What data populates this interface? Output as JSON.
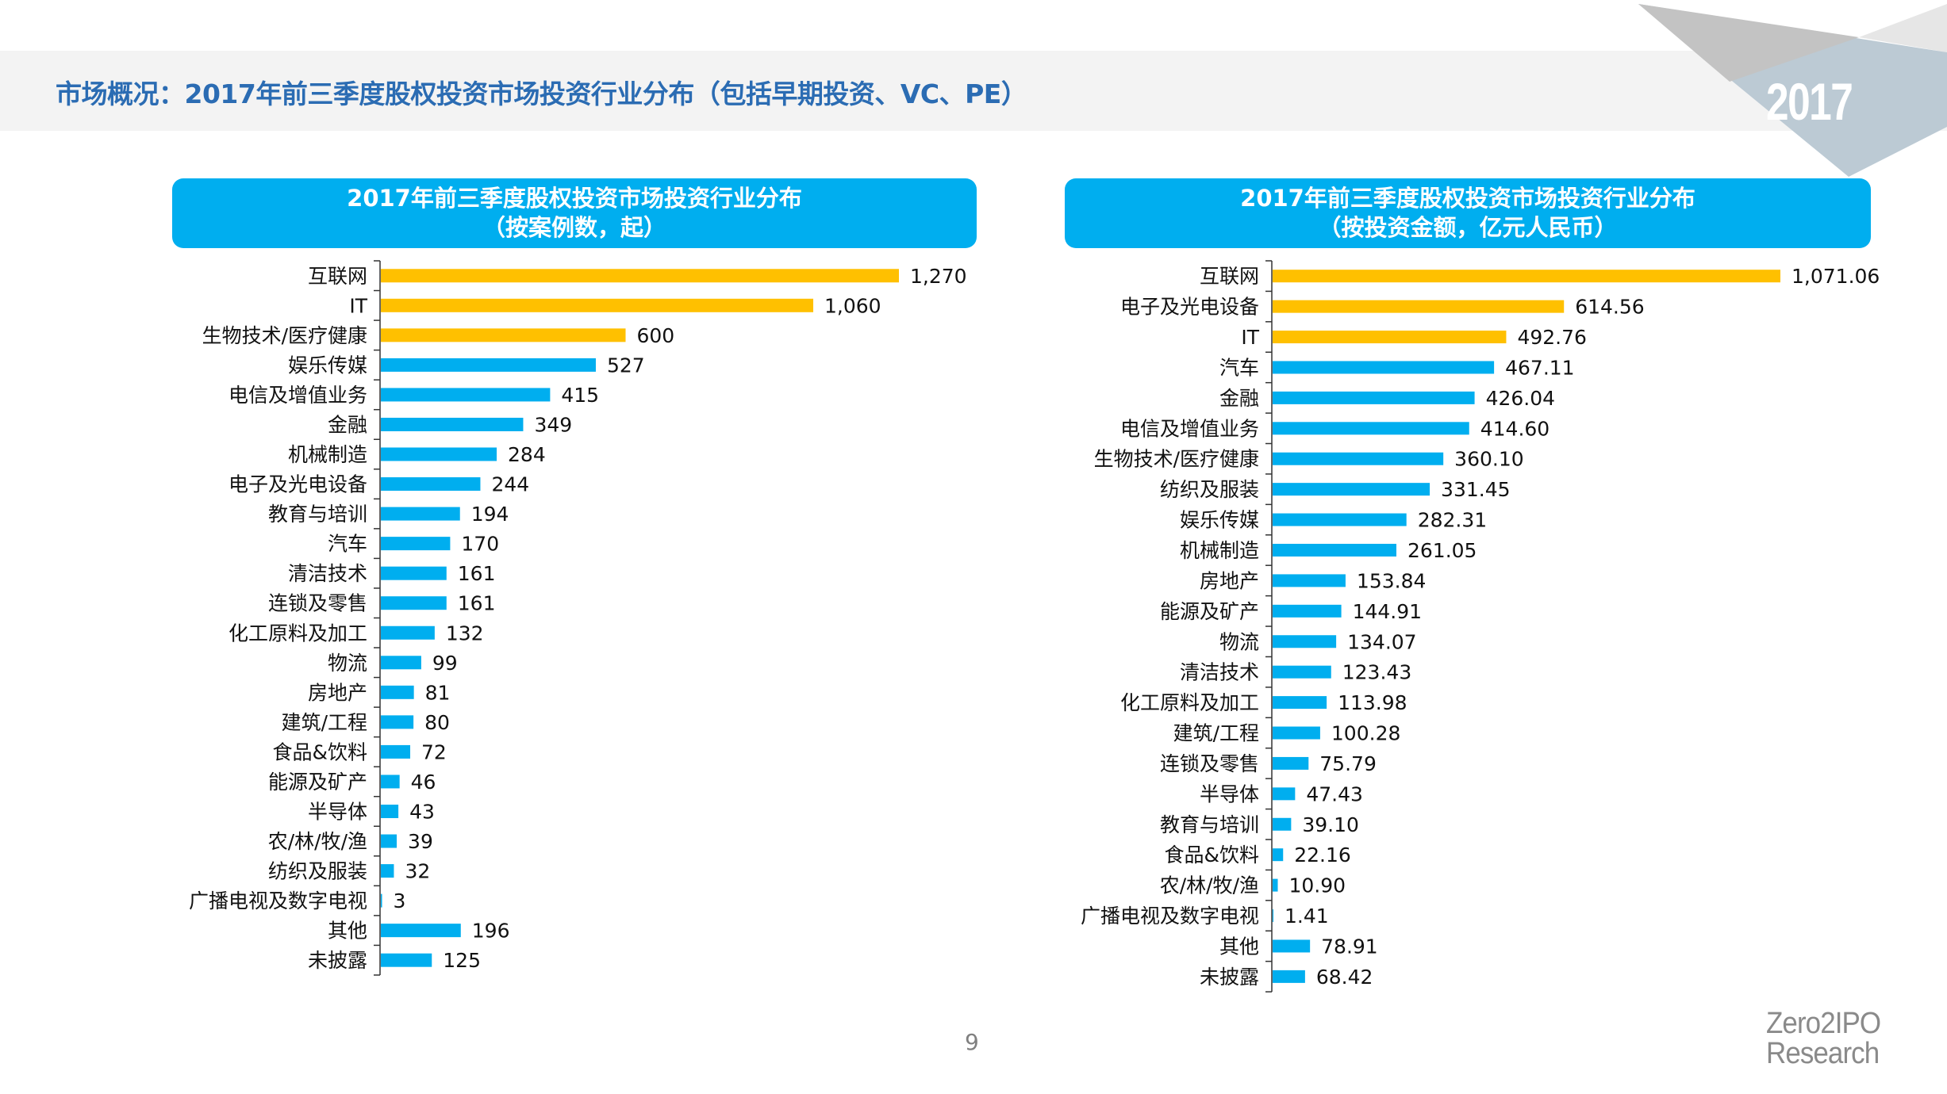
{
  "page": {
    "title": "市场概况：2017年前三季度股权投资市场投资行业分布（包括早期投资、VC、PE）",
    "year_badge": "2017",
    "page_number": "9",
    "logo_line1": "Zero2IPO",
    "logo_line2": "Research"
  },
  "colors": {
    "highlight_bar": "#ffc000",
    "default_bar": "#00aeef",
    "header_box": "#00aeef",
    "title_text": "#2b6cb3"
  },
  "chart_data": [
    {
      "type": "bar",
      "orientation": "horizontal",
      "title_line1": "2017年前三季度股权投资市场投资行业分布",
      "title_line2": "（按案例数，起）",
      "xlabel": "",
      "ylabel": "",
      "unit": "起",
      "grid": false,
      "highlight_top_n": 3,
      "xlim": [
        0,
        1270
      ],
      "categories": [
        "互联网",
        "IT",
        "生物技术/医疗健康",
        "娱乐传媒",
        "电信及增值业务",
        "金融",
        "机械制造",
        "电子及光电设备",
        "教育与培训",
        "汽车",
        "清洁技术",
        "连锁及零售",
        "化工原料及加工",
        "物流",
        "房地产",
        "建筑/工程",
        "食品&饮料",
        "能源及矿产",
        "半导体",
        "农/林/牧/渔",
        "纺织及服装",
        "广播电视及数字电视",
        "其他",
        "未披露"
      ],
      "values": [
        1270,
        1060,
        600,
        527,
        415,
        349,
        284,
        244,
        194,
        170,
        161,
        161,
        132,
        99,
        81,
        80,
        72,
        46,
        43,
        39,
        32,
        3,
        196,
        125
      ],
      "value_labels": [
        "1,270",
        "1,060",
        "600",
        "527",
        "415",
        "349",
        "284",
        "244",
        "194",
        "170",
        "161",
        "161",
        "132",
        "99",
        "81",
        "80",
        "72",
        "46",
        "43",
        "39",
        "32",
        "3",
        "196",
        "125"
      ]
    },
    {
      "type": "bar",
      "orientation": "horizontal",
      "title_line1": "2017年前三季度股权投资市场投资行业分布",
      "title_line2": "（按投资金额，亿元人民币）",
      "xlabel": "",
      "ylabel": "",
      "unit": "亿元人民币",
      "grid": false,
      "highlight_top_n": 3,
      "xlim": [
        0,
        1071.06
      ],
      "categories": [
        "互联网",
        "电子及光电设备",
        "IT",
        "汽车",
        "金融",
        "电信及增值业务",
        "生物技术/医疗健康",
        "纺织及服装",
        "娱乐传媒",
        "机械制造",
        "房地产",
        "能源及矿产",
        "物流",
        "清洁技术",
        "化工原料及加工",
        "建筑/工程",
        "连锁及零售",
        "半导体",
        "教育与培训",
        "食品&饮料",
        "农/林/牧/渔",
        "广播电视及数字电视",
        "其他",
        "未披露"
      ],
      "values": [
        1071.06,
        614.56,
        492.76,
        467.11,
        426.04,
        414.6,
        360.1,
        331.45,
        282.31,
        261.05,
        153.84,
        144.91,
        134.07,
        123.43,
        113.98,
        100.28,
        75.79,
        47.43,
        39.1,
        22.16,
        10.9,
        1.41,
        78.91,
        68.42
      ],
      "value_labels": [
        "1,071.06",
        "614.56",
        "492.76",
        "467.11",
        "426.04",
        "414.60",
        "360.10",
        "331.45",
        "282.31",
        "261.05",
        "153.84",
        "144.91",
        "134.07",
        "123.43",
        "113.98",
        "100.28",
        "75.79",
        "47.43",
        "39.10",
        "22.16",
        "10.90",
        "1.41",
        "78.91",
        "68.42"
      ]
    }
  ]
}
